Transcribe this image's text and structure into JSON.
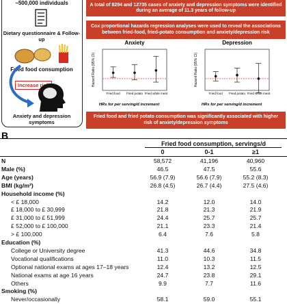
{
  "panel_a": {
    "left": {
      "cohort": "~500,000 individuals",
      "method": "Dietary questionnaire & Follow-up",
      "exposure": "Fried food consumption",
      "effect": "Increase risk",
      "outcome": "Anxiety and depression symptoms"
    },
    "banners": [
      "A total of 8294 and 12735 cases of anxiety and depression symptoms were identified during an average of 11.3 years of follow-up",
      "Cox proportional hazards regression analyses were used to reveal the associations between fried-food, fried-potato consumption and anxiety/depression risk",
      "Fried food and fried potato consumption was significantly associated with higher risk of anxiety/depression symptoms"
    ],
    "charts": [
      {
        "type": "forest",
        "title": "Anxiety",
        "y_label": "Hazard Ratio (95% CI)",
        "x_label": "HRs for per serving/d increment",
        "categories": [
          "Fried food",
          "Fried potato",
          "Fried white meat"
        ],
        "values": [
          1.05,
          1.05,
          1.07
        ],
        "lower": [
          1.01,
          0.99,
          0.97
        ],
        "upper": [
          1.1,
          1.12,
          1.19
        ],
        "ylim": [
          0.9,
          1.25
        ],
        "ref_line": 1,
        "ref_color": "#d33"
      },
      {
        "type": "forest",
        "title": "Depression",
        "y_label": "Hazard Ratio (95% CI)",
        "x_label": "HRs for per serving/d increment",
        "categories": [
          "Fried food",
          "Fried potato",
          "Fried white meat"
        ],
        "values": [
          1.02,
          1.03,
          1.0
        ],
        "lower": [
          0.98,
          0.97,
          0.88
        ],
        "upper": [
          1.06,
          1.09,
          1.13
        ],
        "ylim": [
          0.9,
          1.25
        ],
        "ref_line": 1,
        "ref_color": "#d33"
      }
    ]
  },
  "panel_b": {
    "label": "B",
    "table": {
      "group_header": "Fried food consumption, servings/d",
      "columns": [
        "0",
        "0-1",
        "≥1"
      ],
      "main_rows": [
        {
          "label": "N",
          "values": [
            "58,572",
            "41,196",
            "40,960"
          ]
        },
        {
          "label": "Male (%)",
          "values": [
            "46.5",
            "47.5",
            "55.6"
          ]
        },
        {
          "label": "Age (years)",
          "values": [
            "56.9 (7.9)",
            "56.6 (7.9)",
            "55.2 (8.3)"
          ]
        },
        {
          "label": "BMI (kg/m²)",
          "values": [
            "26.8 (4.5)",
            "26.7 (4.4)",
            "27.5 (4.6)"
          ]
        }
      ],
      "sections": [
        {
          "title": "Household income (%)",
          "rows": [
            {
              "label": "< £ 18,000",
              "values": [
                "14.2",
                "12.0",
                "14.0"
              ]
            },
            {
              "label": "£ 18,000 to £ 30,999",
              "values": [
                "21.8",
                "21.3",
                "21.9"
              ]
            },
            {
              "label": "£ 31,000 to £ 51,999",
              "values": [
                "24.4",
                "25.7",
                "25.7"
              ]
            },
            {
              "label": "£ 52,000 to £ 100,000",
              "values": [
                "21.1",
                "23.3",
                "21.4"
              ]
            },
            {
              "label": "> £ 100,000",
              "values": [
                "6.4",
                "7.6",
                "5.8"
              ]
            }
          ]
        },
        {
          "title": "Education (%)",
          "rows": [
            {
              "label": "College or University degree",
              "values": [
                "41.3",
                "44.6",
                "34.8"
              ]
            },
            {
              "label": "Vocational qualifications",
              "values": [
                "11.0",
                "10.3",
                "11.5"
              ]
            },
            {
              "label": "Optional national exams at ages 17–18 years",
              "values": [
                "12.4",
                "13.2",
                "12.5"
              ]
            },
            {
              "label": "National exams at age 16 years",
              "values": [
                "24.7",
                "23.8",
                "29.1"
              ]
            },
            {
              "label": "Others",
              "values": [
                "9.9",
                "7.7",
                "11.6"
              ]
            }
          ]
        },
        {
          "title": "Smoking (%)",
          "rows": [
            {
              "label": "Never/occasionally",
              "values": [
                "58.1",
                "59.0",
                "55.1"
              ]
            }
          ]
        }
      ]
    }
  }
}
